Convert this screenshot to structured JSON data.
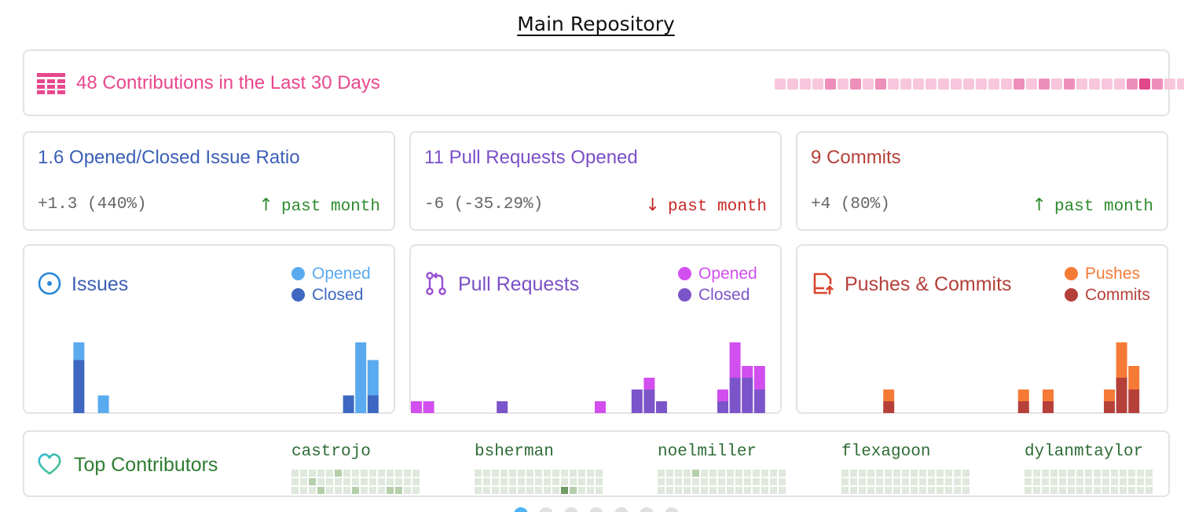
{
  "page": {
    "title": "Main Repository"
  },
  "banner": {
    "icon": "calendar-grid-icon",
    "label": "48 Contributions in the Last 30 Days",
    "heatmap_levels": [
      1,
      1,
      1,
      1,
      2,
      1,
      2,
      1,
      2,
      1,
      1,
      1,
      1,
      1,
      1,
      1,
      1,
      1,
      1,
      2,
      1,
      2,
      1,
      2,
      1,
      1,
      1,
      1,
      2,
      3,
      2,
      1,
      1
    ]
  },
  "stats": [
    {
      "title": "1.6 Opened/Closed Issue Ratio",
      "delta": "+1.3 (440%)",
      "direction": "up",
      "trend_label": "past month",
      "color": "#3b5fb5"
    },
    {
      "title": "11 Pull Requests Opened",
      "delta": "-6 (-35.29%)",
      "direction": "down",
      "trend_label": "past month",
      "color": "#7b4fc7"
    },
    {
      "title": "9 Commits",
      "delta": "+4 (80%)",
      "direction": "up",
      "trend_label": "past month",
      "color": "#b5403a"
    }
  ],
  "trend_arrows": {
    "up": "↑",
    "down": "↓"
  },
  "trend_colors": {
    "up": "#2e8b2e",
    "down": "#c62828"
  },
  "charts": {
    "issues": {
      "title": "Issues",
      "icon": "issue-circle-icon",
      "legend": [
        {
          "label": "Opened",
          "color": "#5aaaf0"
        },
        {
          "label": "Closed",
          "color": "#3d67c0"
        }
      ],
      "chart_data": {
        "type": "bar",
        "stacked": true,
        "x": [
          4,
          6,
          26,
          27,
          28
        ],
        "series": [
          {
            "name": "Closed",
            "values": [
              4.5,
              0,
              1.5,
              0,
              1.5
            ]
          },
          {
            "name": "Opened",
            "values": [
              1.5,
              1.5,
              0,
              6,
              3
            ]
          }
        ]
      }
    },
    "pull_requests": {
      "title": "Pull Requests",
      "icon": "pull-request-icon",
      "legend": [
        {
          "label": "Opened",
          "color": "#d24fef"
        },
        {
          "label": "Closed",
          "color": "#7c54c9"
        }
      ],
      "chart_data": {
        "type": "bar",
        "stacked": true,
        "x": [
          0,
          1,
          7,
          15,
          18,
          19,
          20,
          25,
          26,
          27,
          28
        ],
        "series": [
          {
            "name": "Closed",
            "values": [
              0,
              0,
              1,
              0,
              2,
              2,
              1,
              1,
              3,
              3,
              2
            ]
          },
          {
            "name": "Opened",
            "values": [
              1,
              1,
              0,
              1,
              0,
              1,
              0,
              1,
              3,
              1,
              2
            ]
          }
        ]
      }
    },
    "pushes_commits": {
      "title": "Pushes & Commits",
      "icon": "push-icon",
      "legend": [
        {
          "label": "Pushes",
          "color": "#f57a36"
        },
        {
          "label": "Commits",
          "color": "#b5403a"
        }
      ],
      "chart_data": {
        "type": "bar",
        "stacked": true,
        "x": [
          7,
          18,
          20,
          25,
          26,
          27
        ],
        "series": [
          {
            "name": "Commits",
            "values": [
              1,
              1,
              1,
              1,
              3,
              2
            ]
          },
          {
            "name": "Pushes",
            "values": [
              1,
              1,
              1,
              1,
              3,
              2
            ]
          }
        ]
      }
    }
  },
  "contributors": {
    "title": "Top Contributors",
    "icon": "heart-icon",
    "people": [
      {
        "name": "castrojo",
        "levels": [
          0,
          0,
          0,
          0,
          0,
          1,
          0,
          0,
          0,
          0,
          0,
          0,
          0,
          0,
          0,
          0,
          0,
          1,
          0,
          0,
          0,
          0,
          0,
          0,
          0,
          0,
          0,
          0,
          0,
          0,
          0,
          0,
          0,
          1,
          0,
          0,
          0,
          1,
          0,
          0,
          0,
          1,
          1,
          0,
          0
        ]
      },
      {
        "name": "bsherman",
        "levels": [
          0,
          0,
          0,
          0,
          0,
          0,
          0,
          0,
          0,
          0,
          0,
          0,
          0,
          0,
          0,
          0,
          0,
          0,
          0,
          0,
          0,
          0,
          0,
          0,
          0,
          0,
          0,
          0,
          0,
          0,
          0,
          0,
          0,
          0,
          0,
          0,
          0,
          0,
          0,
          0,
          2,
          1,
          0,
          0,
          0
        ]
      },
      {
        "name": "noelmiller",
        "levels": [
          0,
          0,
          0,
          0,
          1,
          0,
          0,
          0,
          0,
          0,
          0,
          0,
          0,
          0,
          0,
          0,
          0,
          0,
          0,
          0,
          0,
          0,
          0,
          0,
          0,
          0,
          0,
          0,
          0,
          0,
          0,
          0,
          0,
          0,
          0,
          0,
          0,
          0,
          0,
          0,
          0,
          0,
          0,
          0,
          0
        ]
      },
      {
        "name": "flexagoon",
        "levels": [
          0,
          0,
          0,
          0,
          0,
          0,
          0,
          0,
          0,
          0,
          0,
          0,
          0,
          0,
          0,
          0,
          0,
          0,
          0,
          0,
          0,
          0,
          0,
          0,
          0,
          0,
          0,
          0,
          0,
          0,
          0,
          0,
          0,
          0,
          0,
          0,
          0,
          0,
          0,
          0,
          0,
          0,
          0,
          0,
          0
        ]
      },
      {
        "name": "dylanmtaylor",
        "levels": [
          0,
          0,
          0,
          0,
          0,
          0,
          0,
          0,
          0,
          0,
          0,
          0,
          0,
          0,
          0,
          0,
          0,
          0,
          0,
          0,
          0,
          0,
          0,
          0,
          0,
          0,
          0,
          0,
          0,
          0,
          0,
          0,
          0,
          0,
          0,
          0,
          0,
          0,
          0,
          0,
          0,
          0,
          0,
          0,
          0
        ]
      }
    ]
  },
  "pager": {
    "count": 7,
    "active": 0
  }
}
